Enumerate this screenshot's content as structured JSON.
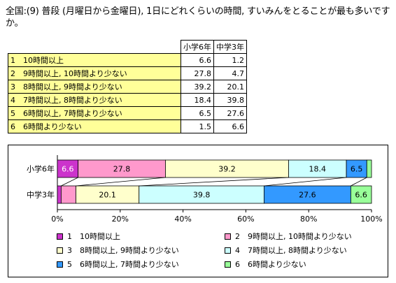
{
  "title": "全国:(9) 普段 (月曜日から金曜日), 1日にどれくらいの時間, すいみんをとることが最も多いですか。",
  "table": {
    "headers": [
      "小学6年",
      "中学3年"
    ],
    "rows": [
      {
        "label": "1　10時間以上",
        "values": [
          "6.6",
          "1.2"
        ]
      },
      {
        "label": "2　9時間以上, 10時間より少ない",
        "values": [
          "27.8",
          "4.7"
        ]
      },
      {
        "label": "3　8時間以上, 9時間より少ない",
        "values": [
          "39.2",
          "20.1"
        ]
      },
      {
        "label": "4　7時間以上, 8時間より少ない",
        "values": [
          "18.4",
          "39.8"
        ]
      },
      {
        "label": "5　6時間以上, 7時間より少ない",
        "values": [
          "6.5",
          "27.6"
        ]
      },
      {
        "label": "6　6時間より少ない",
        "values": [
          "1.5",
          "6.6"
        ]
      }
    ]
  },
  "chart_data": {
    "type": "bar",
    "orientation": "horizontal",
    "stacked": true,
    "normalized": true,
    "categories": [
      "小学6年",
      "中学3年"
    ],
    "series": [
      {
        "name": "1　10時間以上",
        "values": [
          6.6,
          1.2
        ],
        "color": "#cc33cc",
        "label_color": "#ffffff",
        "show_labels": [
          true,
          false
        ]
      },
      {
        "name": "2　9時間以上, 10時間より少ない",
        "values": [
          27.8,
          4.7
        ],
        "color": "#ff99cc",
        "label_color": "#000000",
        "show_labels": [
          true,
          false
        ]
      },
      {
        "name": "3　8時間以上, 9時間より少ない",
        "values": [
          39.2,
          20.1
        ],
        "color": "#ffffcc",
        "label_color": "#000000",
        "show_labels": [
          true,
          true
        ]
      },
      {
        "name": "4　7時間以上, 8時間より少ない",
        "values": [
          18.4,
          39.8
        ],
        "color": "#ccffff",
        "label_color": "#000000",
        "show_labels": [
          true,
          true
        ]
      },
      {
        "name": "5　6時間以上, 7時間より少ない",
        "values": [
          6.5,
          27.6
        ],
        "color": "#3399ff",
        "label_color": "#000000",
        "show_labels": [
          true,
          true
        ]
      },
      {
        "name": "6　6時間より少ない",
        "values": [
          1.5,
          6.6
        ],
        "color": "#99ff99",
        "label_color": "#000000",
        "show_labels": [
          false,
          true
        ]
      }
    ],
    "xlim": [
      0,
      100
    ],
    "xticks": [
      "0%",
      "20%",
      "40%",
      "60%",
      "80%",
      "100%"
    ],
    "legend_placement": "bottom"
  }
}
